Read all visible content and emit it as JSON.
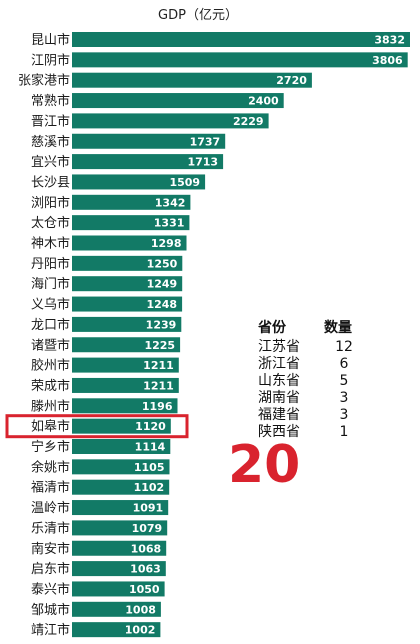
{
  "chart_data": {
    "type": "bar",
    "orientation": "horizontal",
    "title": "GDP（亿元）",
    "categories": [
      "昆山市",
      "江阴市",
      "张家港市",
      "常熟市",
      "晋江市",
      "慈溪市",
      "宜兴市",
      "长沙县",
      "浏阳市",
      "太仓市",
      "神木市",
      "丹阳市",
      "海门市",
      "义乌市",
      "龙口市",
      "诸暨市",
      "胶州市",
      "荣成市",
      "滕州市",
      "如皋市",
      "宁乡市",
      "余姚市",
      "福清市",
      "温岭市",
      "乐清市",
      "南安市",
      "启东市",
      "泰兴市",
      "邹城市",
      "靖江市"
    ],
    "values": [
      3832,
      3806,
      2720,
      2400,
      2229,
      1737,
      1713,
      1509,
      1342,
      1331,
      1298,
      1250,
      1249,
      1248,
      1239,
      1225,
      1211,
      1211,
      1196,
      1120,
      1114,
      1105,
      1102,
      1091,
      1079,
      1068,
      1063,
      1050,
      1008,
      1002
    ],
    "highlight": "如皋市",
    "rank_annotation": "20",
    "xlim": [
      0,
      3832
    ],
    "bar_color": "#127a66",
    "highlight_color": "#d9232e",
    "grid": false,
    "legend": "none"
  },
  "summary": {
    "headers": [
      "省份",
      "数量"
    ],
    "rows": [
      {
        "province": "江苏省",
        "count": "12"
      },
      {
        "province": "浙江省",
        "count": "6"
      },
      {
        "province": "山东省",
        "count": "5"
      },
      {
        "province": "湖南省",
        "count": "3"
      },
      {
        "province": "福建省",
        "count": "3"
      },
      {
        "province": "陕西省",
        "count": "1"
      }
    ]
  }
}
